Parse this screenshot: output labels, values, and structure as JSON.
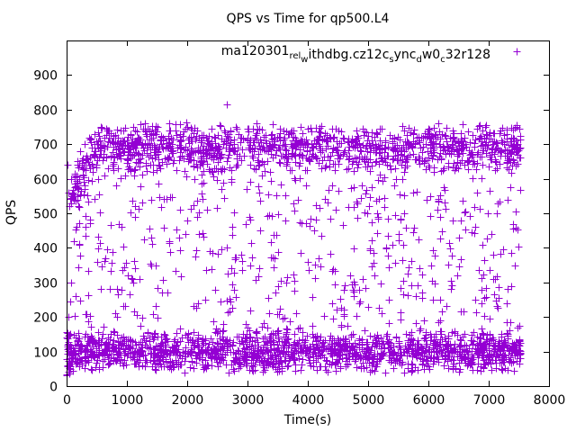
{
  "chart_data": {
    "type": "scatter",
    "title": "QPS vs Time for qp500.L4",
    "xlabel": "Time(s)",
    "ylabel": "QPS",
    "xlim": [
      0,
      8000
    ],
    "ylim": [
      0,
      1000
    ],
    "xticks": [
      0,
      1000,
      2000,
      3000,
      4000,
      5000,
      6000,
      7000,
      8000
    ],
    "yticks": [
      0,
      100,
      200,
      300,
      400,
      500,
      600,
      700,
      800,
      900
    ],
    "xtick_labels": [
      "0",
      "1000",
      "2000",
      "3000",
      "4000",
      "5000",
      "6000",
      "7000",
      "8000"
    ],
    "ytick_labels": [
      "0",
      "100",
      "200",
      "300",
      "400",
      "500",
      "600",
      "700",
      "800",
      "900"
    ],
    "grid": false,
    "legend_position": "top-right",
    "marker": "+",
    "series": [
      {
        "name": "ma120301_rel_withdbg.cz12c_sync_dw0_c32r128",
        "legend_parts": [
          {
            "text": "ma120301",
            "sub": false
          },
          {
            "text": "rel",
            "sub": true
          },
          {
            "text": "w",
            "sub": true
          },
          {
            "text": "ithdbg.cz12c",
            "sub": false
          },
          {
            "text": "s",
            "sub": true
          },
          {
            "text": "ync",
            "sub": false
          },
          {
            "text": "d",
            "sub": true
          },
          {
            "text": "w0",
            "sub": false
          },
          {
            "text": "c",
            "sub": true
          },
          {
            "text": "32r128",
            "sub": false
          }
        ],
        "color": "#9400d3",
        "points": [
          [
            5,
            30
          ],
          [
            10,
            60
          ],
          [
            15,
            120
          ],
          [
            20,
            640
          ],
          [
            25,
            560
          ],
          [
            30,
            200
          ],
          [
            40,
            80
          ],
          [
            50,
            520
          ],
          [
            60,
            100
          ],
          [
            80,
            300
          ],
          [
            100,
            560
          ],
          [
            120,
            420
          ],
          [
            140,
            610
          ],
          [
            160,
            460
          ],
          [
            180,
            650
          ],
          [
            200,
            520
          ],
          [
            230,
            680
          ],
          [
            260,
            640
          ],
          [
            300,
            700
          ],
          [
            340,
            660
          ],
          [
            380,
            720
          ],
          [
            420,
            690
          ],
          [
            460,
            730
          ],
          [
            500,
            700
          ],
          [
            560,
            750
          ],
          [
            620,
            720
          ],
          [
            700,
            740
          ],
          [
            800,
            700
          ],
          [
            900,
            740
          ],
          [
            1000,
            710
          ],
          [
            1100,
            750
          ],
          [
            1200,
            720
          ],
          [
            1300,
            760
          ],
          [
            1400,
            730
          ],
          [
            1500,
            750
          ],
          [
            1600,
            720
          ],
          [
            1700,
            760
          ],
          [
            1800,
            740
          ],
          [
            1900,
            710
          ],
          [
            2000,
            750
          ],
          [
            2200,
            720
          ],
          [
            2400,
            745
          ],
          [
            2600,
            700
          ],
          [
            2650,
            815
          ],
          [
            2800,
            750
          ],
          [
            3000,
            720
          ],
          [
            3200,
            745
          ],
          [
            3400,
            715
          ],
          [
            3600,
            740
          ],
          [
            3800,
            710
          ],
          [
            4000,
            745
          ],
          [
            4200,
            725
          ],
          [
            4400,
            745
          ],
          [
            4600,
            715
          ],
          [
            4800,
            740
          ],
          [
            5000,
            725
          ],
          [
            5200,
            745
          ],
          [
            5400,
            715
          ],
          [
            5600,
            740
          ],
          [
            5800,
            720
          ],
          [
            6000,
            745
          ],
          [
            6200,
            715
          ],
          [
            6400,
            740
          ],
          [
            6600,
            720
          ],
          [
            6800,
            745
          ],
          [
            7000,
            715
          ],
          [
            7200,
            740
          ],
          [
            7400,
            720
          ],
          [
            7500,
            745
          ],
          [
            300,
            110
          ],
          [
            600,
            95
          ],
          [
            900,
            120
          ],
          [
            1200,
            100
          ],
          [
            1500,
            115
          ],
          [
            1800,
            90
          ],
          [
            2100,
            120
          ],
          [
            2400,
            105
          ],
          [
            2700,
            118
          ],
          [
            3000,
            95
          ],
          [
            3300,
            120
          ],
          [
            3600,
            100
          ],
          [
            3900,
            115
          ],
          [
            4200,
            92
          ],
          [
            4500,
            122
          ],
          [
            4800,
            100
          ],
          [
            5100,
            118
          ],
          [
            5400,
            96
          ],
          [
            5700,
            121
          ],
          [
            6000,
            100
          ],
          [
            6300,
            117
          ],
          [
            6600,
            94
          ],
          [
            6900,
            120
          ],
          [
            7200,
            102
          ],
          [
            7500,
            116
          ],
          [
            500,
            360
          ],
          [
            1100,
            300
          ],
          [
            1700,
            420
          ],
          [
            2300,
            250
          ],
          [
            2900,
            380
          ],
          [
            3500,
            290
          ],
          [
            4100,
            450
          ],
          [
            4700,
            320
          ],
          [
            5300,
            400
          ],
          [
            5900,
            270
          ],
          [
            6500,
            430
          ],
          [
            7100,
            310
          ],
          [
            7400,
            470
          ],
          [
            800,
            210
          ],
          [
            1400,
            540
          ],
          [
            2000,
            480
          ],
          [
            2600,
            180
          ],
          [
            3200,
            560
          ],
          [
            3800,
            210
          ],
          [
            4400,
            580
          ],
          [
            5000,
            230
          ],
          [
            5600,
            500
          ],
          [
            6200,
            190
          ],
          [
            6800,
            560
          ],
          [
            7300,
            240
          ]
        ]
      }
    ],
    "generator": {
      "n_points": 8400,
      "x_max": 7530,
      "warmup_end": 500,
      "band_low": {
        "center": 100,
        "spread": 65,
        "fraction": 0.45
      },
      "band_high": {
        "center": 690,
        "spread": 75,
        "fraction": 0.38
      },
      "band_mid": {
        "low": 150,
        "high": 640,
        "fraction": 0.17
      }
    }
  }
}
